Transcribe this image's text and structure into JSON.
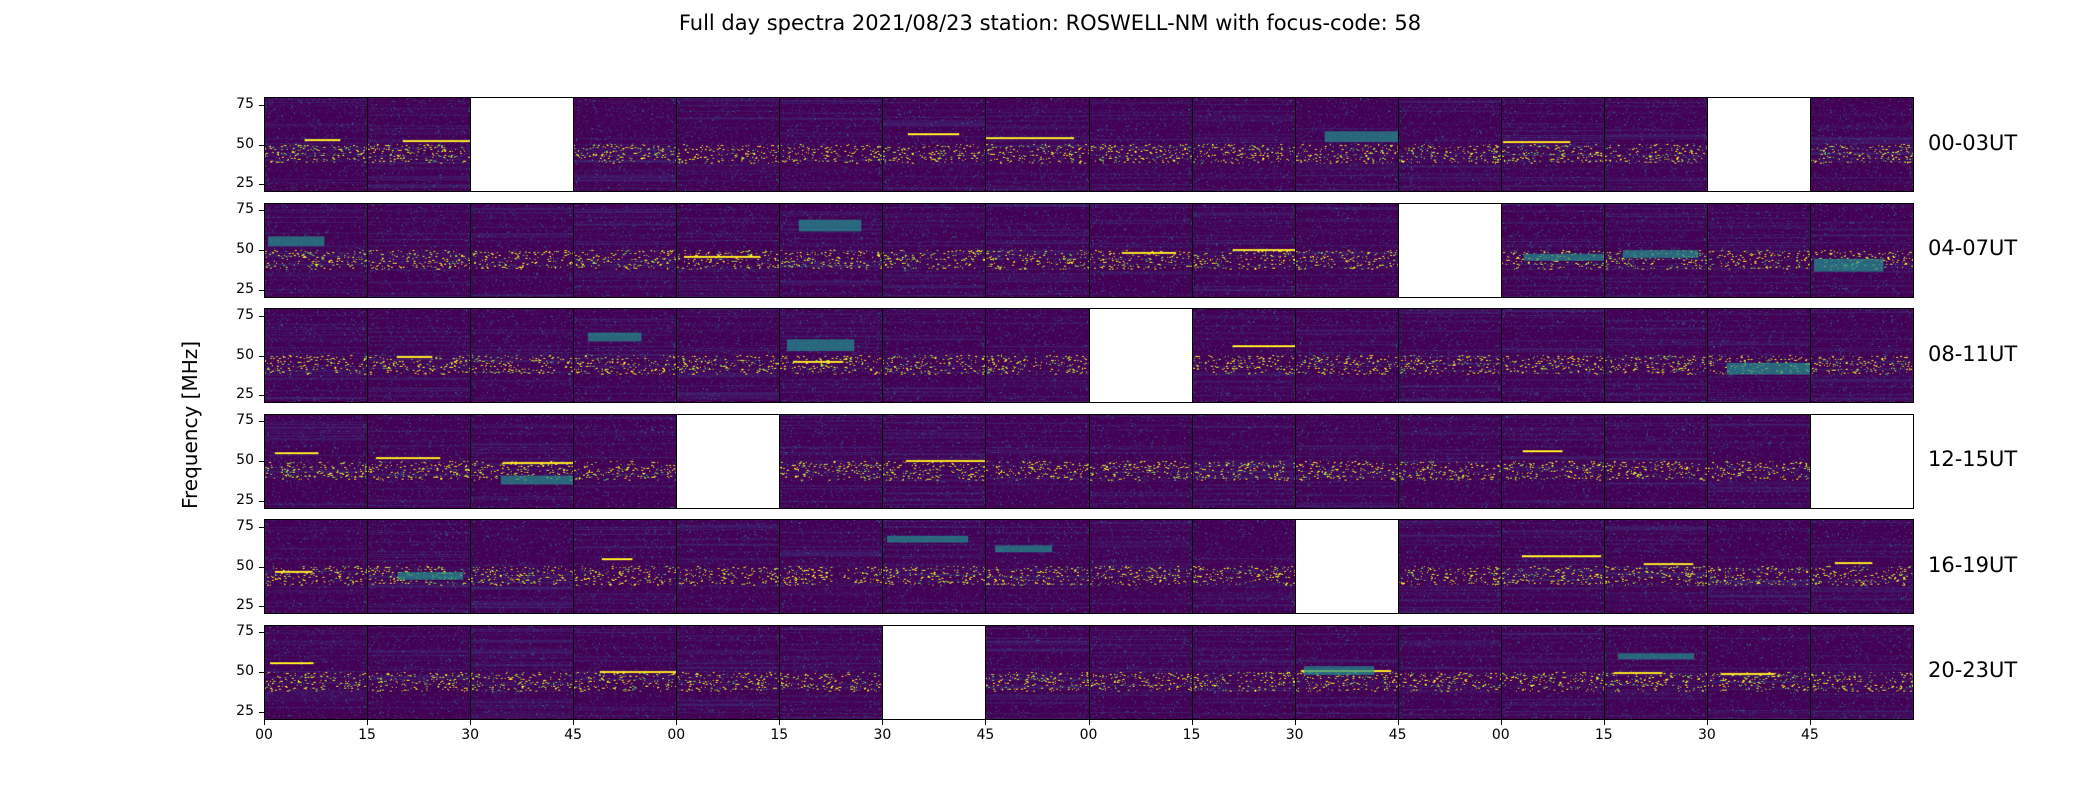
{
  "figure_title": "Full day spectra 2021/08/23 station: ROSWELL-NM with focus-code: 58",
  "chart_data": {
    "type": "heatmap",
    "title": "Full day spectra 2021/08/23 station: ROSWELL-NM with focus-code: 58",
    "ylabel": "Frequency [MHz]",
    "xlabel": "",
    "ylim": [
      20,
      80
    ],
    "yticks": [
      25,
      50,
      75
    ],
    "xticks": [
      "00",
      "15",
      "30",
      "45",
      "00",
      "15",
      "30",
      "45",
      "00",
      "15",
      "30",
      "45",
      "00",
      "15",
      "30",
      "45"
    ],
    "colormap": "viridis",
    "colors": {
      "background": "#440154",
      "mid": "#21918c",
      "high": "#fde725",
      "missing": "#ffffff"
    },
    "rows": [
      {
        "label": "00-03UT",
        "missing_panels": [
          2,
          14
        ]
      },
      {
        "label": "04-07UT",
        "missing_panels": [
          11
        ]
      },
      {
        "label": "08-11UT",
        "missing_panels": [
          8
        ]
      },
      {
        "label": "12-15UT",
        "missing_panels": [
          4,
          15
        ]
      },
      {
        "label": "16-19UT",
        "missing_panels": [
          10
        ]
      },
      {
        "label": "20-23UT",
        "missing_panels": [
          6
        ]
      }
    ],
    "panels_per_row": 16,
    "panel_minutes": 15
  }
}
